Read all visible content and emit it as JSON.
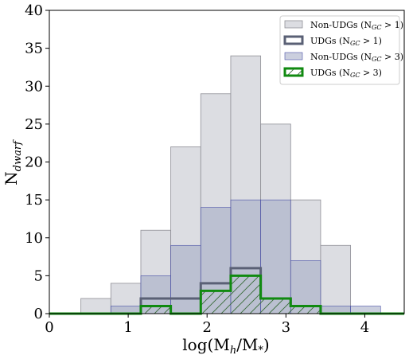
{
  "chart_data": {
    "type": "bar",
    "xlabel": "log(M_h/M_*)",
    "ylabel": "N_dwarf",
    "xlim": [
      0,
      4.5
    ],
    "ylim": [
      0,
      40
    ],
    "x_ticks": [
      "0",
      "1",
      "2",
      "3",
      "4"
    ],
    "y_ticks": [
      "0",
      "5",
      "10",
      "15",
      "20",
      "25",
      "30",
      "35",
      "40"
    ],
    "bin_edges": [
      0.4,
      0.78,
      1.16,
      1.54,
      1.92,
      2.3,
      2.68,
      3.06,
      3.44,
      3.82,
      4.2
    ],
    "legend_position": "upper right",
    "series": [
      {
        "name": "Non-UDGs (N_GC > 1)",
        "style": "filled",
        "color": "#d8dae0",
        "values": [
          2,
          4,
          11,
          22,
          29,
          34,
          25,
          15,
          9,
          0
        ]
      },
      {
        "name": "UDGs (N_GC > 1)",
        "style": "step",
        "color": "#5a6075",
        "values": [
          0,
          0,
          2,
          2,
          4,
          6,
          2,
          1,
          0,
          0
        ]
      },
      {
        "name": "Non-UDGs (N_GC > 3)",
        "style": "filled",
        "color": "#b8bed0",
        "values": [
          0,
          1,
          5,
          9,
          14,
          15,
          15,
          7,
          1,
          1
        ]
      },
      {
        "name": "UDGs (N_GC > 3)",
        "style": "hatched-step",
        "color": "#108a10",
        "values": [
          0,
          0,
          1,
          0,
          3,
          5,
          2,
          1,
          0,
          0
        ]
      }
    ]
  },
  "legend": {
    "items": [
      {
        "prefix": "Non-UDGs (N",
        "sub": "GC",
        "suffix": " > 1)"
      },
      {
        "prefix": "UDGs (N",
        "sub": "GC",
        "suffix": " > 1)"
      },
      {
        "prefix": "Non-UDGs (N",
        "sub": "GC",
        "suffix": " > 3)"
      },
      {
        "prefix": "UDGs (N",
        "sub": "GC",
        "suffix": " > 3)"
      }
    ]
  },
  "axis_text": {
    "x_main": "log(M",
    "x_sub": "h",
    "x_mid": "/M",
    "x_sub2": "*",
    "x_end": ")",
    "y_main": "N",
    "y_sub": "dwarf"
  }
}
